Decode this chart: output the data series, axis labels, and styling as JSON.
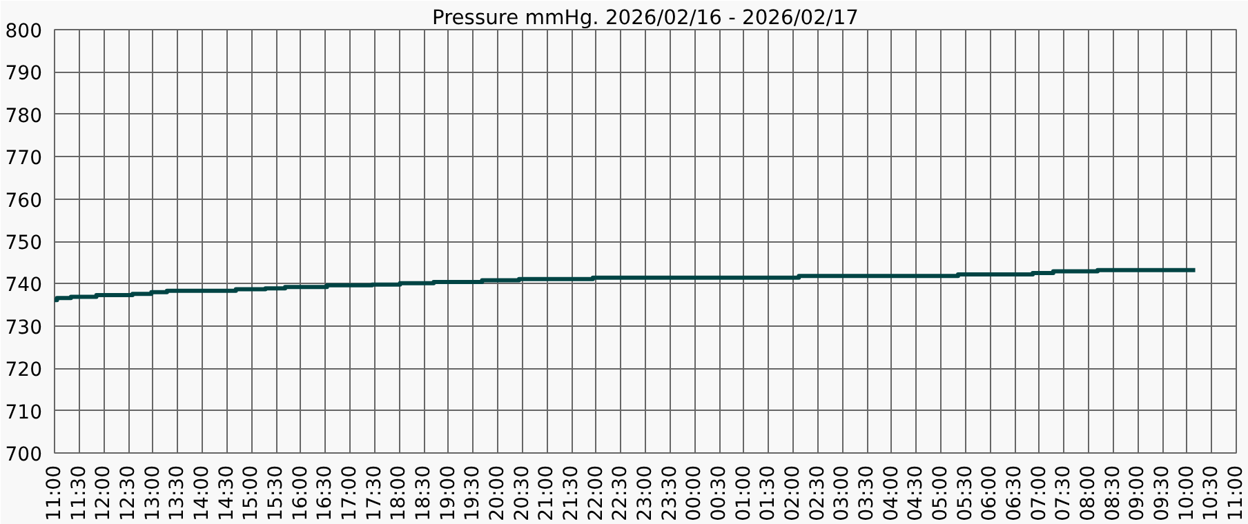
{
  "chart_data": {
    "type": "step",
    "title": "Pressure mmHg. 2026/02/16 - 2026/02/17",
    "x": [
      "2026-02-16T11:00",
      "2026-02-16T11:03",
      "2026-02-16T11:20",
      "2026-02-16T11:51",
      "2026-02-16T12:35",
      "2026-02-16T12:58",
      "2026-02-16T13:17",
      "2026-02-16T14:41",
      "2026-02-16T15:17",
      "2026-02-16T15:41",
      "2026-02-16T16:32",
      "2026-02-16T17:27",
      "2026-02-16T18:01",
      "2026-02-16T18:42",
      "2026-02-16T19:41",
      "2026-02-16T20:26",
      "2026-02-16T21:56",
      "2026-02-17T02:07",
      "2026-02-17T05:21",
      "2026-02-17T06:52",
      "2026-02-17T07:17",
      "2026-02-17T08:11",
      "2026-02-17T10:10"
    ],
    "series": [
      {
        "color": "#004444",
        "values": [
          736.1,
          736.6,
          736.9,
          737.3,
          737.6,
          738.0,
          738.3,
          738.7,
          738.9,
          739.2,
          739.6,
          739.8,
          740.1,
          740.4,
          740.8,
          741.1,
          741.4,
          741.8,
          742.2,
          742.5,
          742.9,
          743.2,
          743.2
        ]
      }
    ],
    "xlim": [
      "2026-02-16T11:00",
      "2026-02-17T11:00"
    ],
    "xticks": [
      {
        "value": "2026-02-16T11:00",
        "label": "11:00"
      },
      {
        "value": "2026-02-16T11:30",
        "label": "11:30"
      },
      {
        "value": "2026-02-16T12:00",
        "label": "12:00"
      },
      {
        "value": "2026-02-16T12:30",
        "label": "12:30"
      },
      {
        "value": "2026-02-16T13:00",
        "label": "13:00"
      },
      {
        "value": "2026-02-16T13:30",
        "label": "13:30"
      },
      {
        "value": "2026-02-16T14:00",
        "label": "14:00"
      },
      {
        "value": "2026-02-16T14:30",
        "label": "14:30"
      },
      {
        "value": "2026-02-16T15:00",
        "label": "15:00"
      },
      {
        "value": "2026-02-16T15:30",
        "label": "15:30"
      },
      {
        "value": "2026-02-16T16:00",
        "label": "16:00"
      },
      {
        "value": "2026-02-16T16:30",
        "label": "16:30"
      },
      {
        "value": "2026-02-16T17:00",
        "label": "17:00"
      },
      {
        "value": "2026-02-16T17:30",
        "label": "17:30"
      },
      {
        "value": "2026-02-16T18:00",
        "label": "18:00"
      },
      {
        "value": "2026-02-16T18:30",
        "label": "18:30"
      },
      {
        "value": "2026-02-16T19:00",
        "label": "19:00"
      },
      {
        "value": "2026-02-16T19:30",
        "label": "19:30"
      },
      {
        "value": "2026-02-16T20:00",
        "label": "20:00"
      },
      {
        "value": "2026-02-16T20:30",
        "label": "20:30"
      },
      {
        "value": "2026-02-16T21:00",
        "label": "21:00"
      },
      {
        "value": "2026-02-16T21:30",
        "label": "21:30"
      },
      {
        "value": "2026-02-16T22:00",
        "label": "22:00"
      },
      {
        "value": "2026-02-16T22:30",
        "label": "22:30"
      },
      {
        "value": "2026-02-16T23:00",
        "label": "23:00"
      },
      {
        "value": "2026-02-16T23:30",
        "label": "23:30"
      },
      {
        "value": "2026-02-17T00:00",
        "label": "00:00"
      },
      {
        "value": "2026-02-17T00:30",
        "label": "00:30"
      },
      {
        "value": "2026-02-17T01:00",
        "label": "01:00"
      },
      {
        "value": "2026-02-17T01:30",
        "label": "01:30"
      },
      {
        "value": "2026-02-17T02:00",
        "label": "02:00"
      },
      {
        "value": "2026-02-17T02:30",
        "label": "02:30"
      },
      {
        "value": "2026-02-17T03:00",
        "label": "03:00"
      },
      {
        "value": "2026-02-17T03:30",
        "label": "03:30"
      },
      {
        "value": "2026-02-17T04:00",
        "label": "04:00"
      },
      {
        "value": "2026-02-17T04:30",
        "label": "04:30"
      },
      {
        "value": "2026-02-17T05:00",
        "label": "05:00"
      },
      {
        "value": "2026-02-17T05:30",
        "label": "05:30"
      },
      {
        "value": "2026-02-17T06:00",
        "label": "06:00"
      },
      {
        "value": "2026-02-17T06:30",
        "label": "06:30"
      },
      {
        "value": "2026-02-17T07:00",
        "label": "07:00"
      },
      {
        "value": "2026-02-17T07:30",
        "label": "07:30"
      },
      {
        "value": "2026-02-17T08:00",
        "label": "08:00"
      },
      {
        "value": "2026-02-17T08:30",
        "label": "08:30"
      },
      {
        "value": "2026-02-17T09:00",
        "label": "09:00"
      },
      {
        "value": "2026-02-17T09:30",
        "label": "09:30"
      },
      {
        "value": "2026-02-17T10:00",
        "label": "10:00"
      },
      {
        "value": "2026-02-17T10:30",
        "label": "10:30"
      },
      {
        "value": "2026-02-17T11:00",
        "label": "11:00"
      }
    ],
    "ylim": [
      700,
      800
    ],
    "yticks": [
      700,
      710,
      720,
      730,
      740,
      750,
      760,
      770,
      780,
      790,
      800
    ],
    "grid": true
  }
}
